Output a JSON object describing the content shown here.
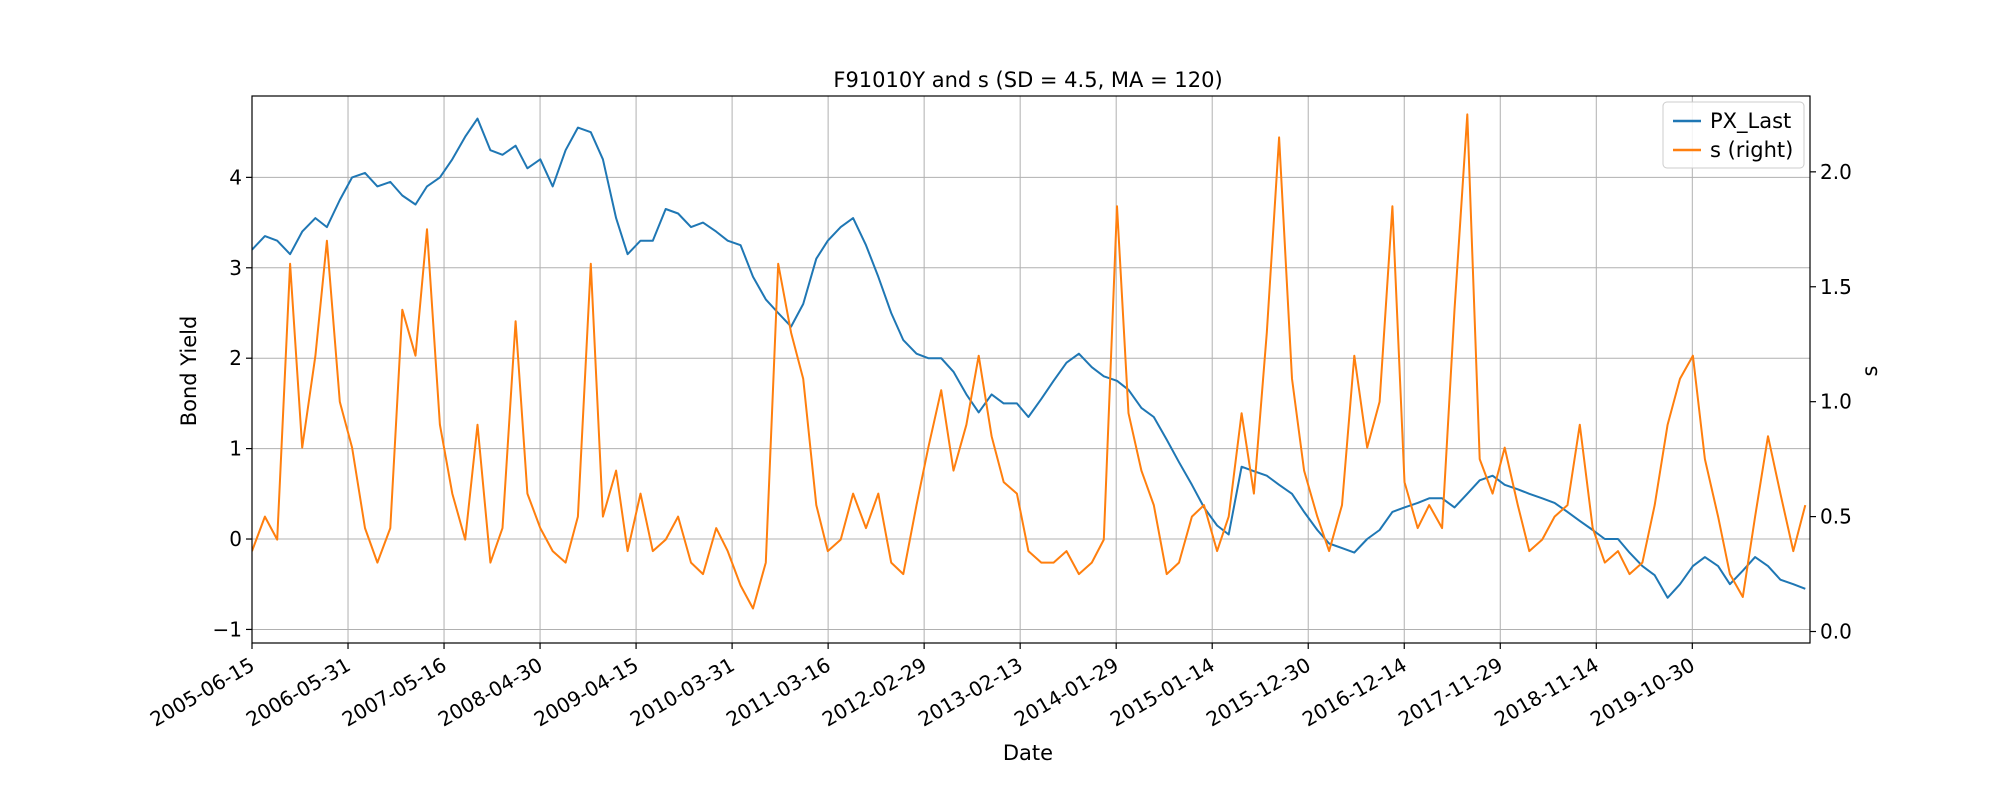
{
  "chart_data": {
    "type": "line",
    "title": "F91010Y and s (SD = 4.5, MA = 120)",
    "xlabel": "Date",
    "ylabel": "Bond Yield",
    "ylabel_right": "s",
    "xlim": [
      "2005-06-15",
      "2021-01-01"
    ],
    "ylim": [
      -1.15,
      4.9
    ],
    "ylim_right": [
      -0.05,
      2.33
    ],
    "x_ticks": [
      "2005-06-15",
      "2006-05-31",
      "2007-05-16",
      "2008-04-30",
      "2009-04-15",
      "2010-03-31",
      "2011-03-16",
      "2012-02-29",
      "2013-02-13",
      "2014-01-29",
      "2015-01-14",
      "2015-12-30",
      "2016-12-14",
      "2017-11-29",
      "2018-11-14",
      "2019-10-30"
    ],
    "y_ticks": [
      -1,
      0,
      1,
      2,
      3,
      4
    ],
    "y_ticks_right": [
      0.0,
      0.5,
      1.0,
      1.5,
      2.0
    ],
    "grid": true,
    "legend_position": "upper-right",
    "series": [
      {
        "name": "PX_Last",
        "axis": "left",
        "color": "#1f77b4",
        "x": [
          "2005-06-15",
          "2005-08-01",
          "2005-09-15",
          "2005-11-01",
          "2005-12-15",
          "2006-02-01",
          "2006-03-15",
          "2006-05-01",
          "2006-06-15",
          "2006-08-01",
          "2006-09-15",
          "2006-11-01",
          "2006-12-15",
          "2007-02-01",
          "2007-03-15",
          "2007-05-01",
          "2007-06-15",
          "2007-08-01",
          "2007-09-15",
          "2007-11-01",
          "2007-12-15",
          "2008-02-01",
          "2008-03-15",
          "2008-05-01",
          "2008-06-15",
          "2008-08-01",
          "2008-09-15",
          "2008-11-01",
          "2008-12-15",
          "2009-02-01",
          "2009-03-15",
          "2009-05-01",
          "2009-06-15",
          "2009-08-01",
          "2009-09-15",
          "2009-11-01",
          "2009-12-15",
          "2010-02-01",
          "2010-03-15",
          "2010-05-01",
          "2010-06-15",
          "2010-08-01",
          "2010-09-15",
          "2010-11-01",
          "2010-12-15",
          "2011-02-01",
          "2011-03-15",
          "2011-05-01",
          "2011-06-15",
          "2011-08-01",
          "2011-09-15",
          "2011-11-01",
          "2011-12-15",
          "2012-02-01",
          "2012-03-15",
          "2012-05-01",
          "2012-06-15",
          "2012-08-01",
          "2012-09-15",
          "2012-11-01",
          "2012-12-15",
          "2013-02-01",
          "2013-03-15",
          "2013-05-01",
          "2013-06-15",
          "2013-08-01",
          "2013-09-15",
          "2013-11-01",
          "2013-12-15",
          "2014-02-01",
          "2014-03-15",
          "2014-05-01",
          "2014-06-15",
          "2014-08-01",
          "2014-09-15",
          "2014-11-01",
          "2014-12-15",
          "2015-02-01",
          "2015-03-15",
          "2015-05-01",
          "2015-06-15",
          "2015-08-01",
          "2015-09-15",
          "2015-11-01",
          "2015-12-15",
          "2016-02-01",
          "2016-03-15",
          "2016-05-01",
          "2016-06-15",
          "2016-08-01",
          "2016-09-15",
          "2016-11-01",
          "2016-12-15",
          "2017-02-01",
          "2017-03-15",
          "2017-05-01",
          "2017-06-15",
          "2017-08-01",
          "2017-09-15",
          "2017-11-01",
          "2017-12-15",
          "2018-02-01",
          "2018-03-15",
          "2018-05-01",
          "2018-06-15",
          "2018-08-01",
          "2018-09-15",
          "2018-11-01",
          "2018-12-15",
          "2019-02-01",
          "2019-03-15",
          "2019-05-01",
          "2019-06-15",
          "2019-08-01",
          "2019-09-15",
          "2019-11-01",
          "2019-12-15",
          "2020-02-01",
          "2020-03-15",
          "2020-05-01",
          "2020-06-15",
          "2020-08-01",
          "2020-09-15",
          "2020-11-01",
          "2020-12-15"
        ],
        "values": [
          3.2,
          3.35,
          3.3,
          3.15,
          3.4,
          3.55,
          3.45,
          3.75,
          4.0,
          4.05,
          3.9,
          3.95,
          3.8,
          3.7,
          3.9,
          4.0,
          4.2,
          4.45,
          4.65,
          4.3,
          4.25,
          4.35,
          4.1,
          4.2,
          3.9,
          4.3,
          4.55,
          4.5,
          4.2,
          3.55,
          3.15,
          3.3,
          3.3,
          3.65,
          3.6,
          3.45,
          3.5,
          3.4,
          3.3,
          3.25,
          2.9,
          2.65,
          2.5,
          2.35,
          2.6,
          3.1,
          3.3,
          3.45,
          3.55,
          3.25,
          2.9,
          2.5,
          2.2,
          2.05,
          2.0,
          2.0,
          1.85,
          1.6,
          1.4,
          1.6,
          1.5,
          1.5,
          1.35,
          1.55,
          1.75,
          1.95,
          2.05,
          1.9,
          1.8,
          1.75,
          1.65,
          1.45,
          1.35,
          1.1,
          0.85,
          0.6,
          0.35,
          0.15,
          0.05,
          0.8,
          0.75,
          0.7,
          0.6,
          0.5,
          0.3,
          0.1,
          -0.05,
          -0.1,
          -0.15,
          0.0,
          0.1,
          0.3,
          0.35,
          0.4,
          0.45,
          0.45,
          0.35,
          0.5,
          0.65,
          0.7,
          0.6,
          0.55,
          0.5,
          0.45,
          0.4,
          0.3,
          0.2,
          0.1,
          0.0,
          0.0,
          -0.15,
          -0.3,
          -0.4,
          -0.65,
          -0.5,
          -0.3,
          -0.2,
          -0.3,
          -0.5,
          -0.35,
          -0.2,
          -0.3,
          -0.45,
          -0.5,
          -0.55
        ]
      },
      {
        "name": "s (right)",
        "axis": "right",
        "color": "#ff7f0e",
        "x": [
          "2005-06-15",
          "2005-08-01",
          "2005-09-15",
          "2005-11-01",
          "2005-12-15",
          "2006-02-01",
          "2006-03-15",
          "2006-05-01",
          "2006-06-15",
          "2006-08-01",
          "2006-09-15",
          "2006-11-01",
          "2006-12-15",
          "2007-02-01",
          "2007-03-15",
          "2007-05-01",
          "2007-06-15",
          "2007-08-01",
          "2007-09-15",
          "2007-11-01",
          "2007-12-15",
          "2008-02-01",
          "2008-03-15",
          "2008-05-01",
          "2008-06-15",
          "2008-08-01",
          "2008-09-15",
          "2008-11-01",
          "2008-12-15",
          "2009-02-01",
          "2009-03-15",
          "2009-05-01",
          "2009-06-15",
          "2009-08-01",
          "2009-09-15",
          "2009-11-01",
          "2009-12-15",
          "2010-02-01",
          "2010-03-15",
          "2010-05-01",
          "2010-06-15",
          "2010-08-01",
          "2010-09-15",
          "2010-11-01",
          "2010-12-15",
          "2011-02-01",
          "2011-03-15",
          "2011-05-01",
          "2011-06-15",
          "2011-08-01",
          "2011-09-15",
          "2011-11-01",
          "2011-12-15",
          "2012-02-01",
          "2012-03-15",
          "2012-05-01",
          "2012-06-15",
          "2012-08-01",
          "2012-09-15",
          "2012-11-01",
          "2012-12-15",
          "2013-02-01",
          "2013-03-15",
          "2013-05-01",
          "2013-06-15",
          "2013-08-01",
          "2013-09-15",
          "2013-11-01",
          "2013-12-15",
          "2014-02-01",
          "2014-03-15",
          "2014-05-01",
          "2014-06-15",
          "2014-08-01",
          "2014-09-15",
          "2014-11-01",
          "2014-12-15",
          "2015-02-01",
          "2015-03-15",
          "2015-05-01",
          "2015-06-15",
          "2015-08-01",
          "2015-09-15",
          "2015-11-01",
          "2015-12-15",
          "2016-02-01",
          "2016-03-15",
          "2016-05-01",
          "2016-06-15",
          "2016-08-01",
          "2016-09-15",
          "2016-11-01",
          "2016-12-15",
          "2017-02-01",
          "2017-03-15",
          "2017-05-01",
          "2017-06-15",
          "2017-08-01",
          "2017-09-15",
          "2017-11-01",
          "2017-12-15",
          "2018-02-01",
          "2018-03-15",
          "2018-05-01",
          "2018-06-15",
          "2018-08-01",
          "2018-09-15",
          "2018-11-01",
          "2018-12-15",
          "2019-02-01",
          "2019-03-15",
          "2019-05-01",
          "2019-06-15",
          "2019-08-01",
          "2019-09-15",
          "2019-11-01",
          "2019-12-15",
          "2020-02-01",
          "2020-03-15",
          "2020-05-01",
          "2020-06-15",
          "2020-08-01",
          "2020-09-15",
          "2020-11-01",
          "2020-12-15"
        ],
        "values": [
          0.35,
          0.5,
          0.4,
          1.6,
          0.8,
          1.2,
          1.7,
          1.0,
          0.8,
          0.45,
          0.3,
          0.45,
          1.4,
          1.2,
          1.75,
          0.9,
          0.6,
          0.4,
          0.9,
          0.3,
          0.45,
          1.35,
          0.6,
          0.45,
          0.35,
          0.3,
          0.5,
          1.6,
          0.5,
          0.7,
          0.35,
          0.6,
          0.35,
          0.4,
          0.5,
          0.3,
          0.25,
          0.45,
          0.35,
          0.2,
          0.1,
          0.3,
          1.6,
          1.3,
          1.1,
          0.55,
          0.35,
          0.4,
          0.6,
          0.45,
          0.6,
          0.3,
          0.25,
          0.55,
          0.8,
          1.05,
          0.7,
          0.9,
          1.2,
          0.85,
          0.65,
          0.6,
          0.35,
          0.3,
          0.3,
          0.35,
          0.25,
          0.3,
          0.4,
          1.85,
          0.95,
          0.7,
          0.55,
          0.25,
          0.3,
          0.5,
          0.55,
          0.35,
          0.5,
          0.95,
          0.6,
          1.3,
          2.15,
          1.1,
          0.7,
          0.5,
          0.35,
          0.55,
          1.2,
          0.8,
          1.0,
          1.85,
          0.65,
          0.45,
          0.55,
          0.45,
          1.4,
          2.25,
          0.75,
          0.6,
          0.8,
          0.55,
          0.35,
          0.4,
          0.5,
          0.55,
          0.9,
          0.45,
          0.3,
          0.35,
          0.25,
          0.3,
          0.55,
          0.9,
          1.1,
          1.2,
          0.75,
          0.5,
          0.25,
          0.15,
          0.5,
          0.85,
          0.6,
          0.35,
          0.55
        ]
      }
    ]
  }
}
